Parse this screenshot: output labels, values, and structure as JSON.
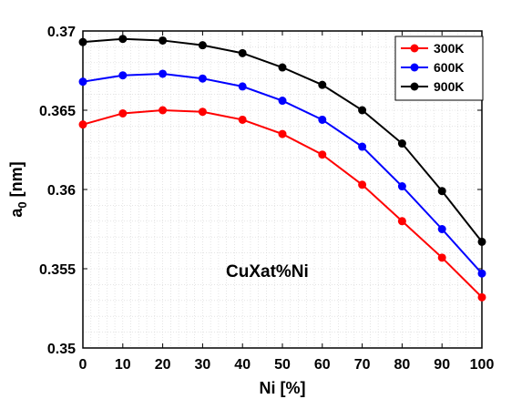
{
  "chart_data": {
    "type": "line",
    "xlabel": "Ni [%]",
    "ylabel_main": "a",
    "ylabel_sub": "0",
    "ylabel_unit": " [nm]",
    "annotation": "CuXat%Ni",
    "x": [
      0,
      10,
      20,
      30,
      40,
      50,
      60,
      70,
      80,
      90,
      100
    ],
    "xlim": [
      0,
      100
    ],
    "ylim": [
      0.35,
      0.37
    ],
    "x_ticks": [
      0,
      10,
      20,
      30,
      40,
      50,
      60,
      70,
      80,
      90,
      100
    ],
    "x_tick_labels": [
      "0",
      "10",
      "20",
      "30",
      "40",
      "50",
      "60",
      "70",
      "80",
      "90",
      "100"
    ],
    "y_ticks": [
      0.35,
      0.355,
      0.36,
      0.365,
      0.37
    ],
    "y_tick_labels": [
      "0.35",
      "0.355",
      "0.36",
      "0.365",
      "0.37"
    ],
    "grid": "minor",
    "legend_position": "top-right",
    "series": [
      {
        "name": "300K",
        "color": "#ff0000",
        "values": [
          0.3641,
          0.3648,
          0.365,
          0.3649,
          0.3644,
          0.3635,
          0.3622,
          0.3603,
          0.358,
          0.3557,
          0.3532
        ]
      },
      {
        "name": "600K",
        "color": "#0000ff",
        "values": [
          0.3668,
          0.3672,
          0.3673,
          0.367,
          0.3665,
          0.3656,
          0.3644,
          0.3627,
          0.3602,
          0.3575,
          0.3547
        ]
      },
      {
        "name": "900K",
        "color": "#000000",
        "values": [
          0.3693,
          0.3695,
          0.3694,
          0.3691,
          0.3686,
          0.3677,
          0.3666,
          0.365,
          0.3629,
          0.3599,
          0.3567
        ]
      }
    ]
  }
}
